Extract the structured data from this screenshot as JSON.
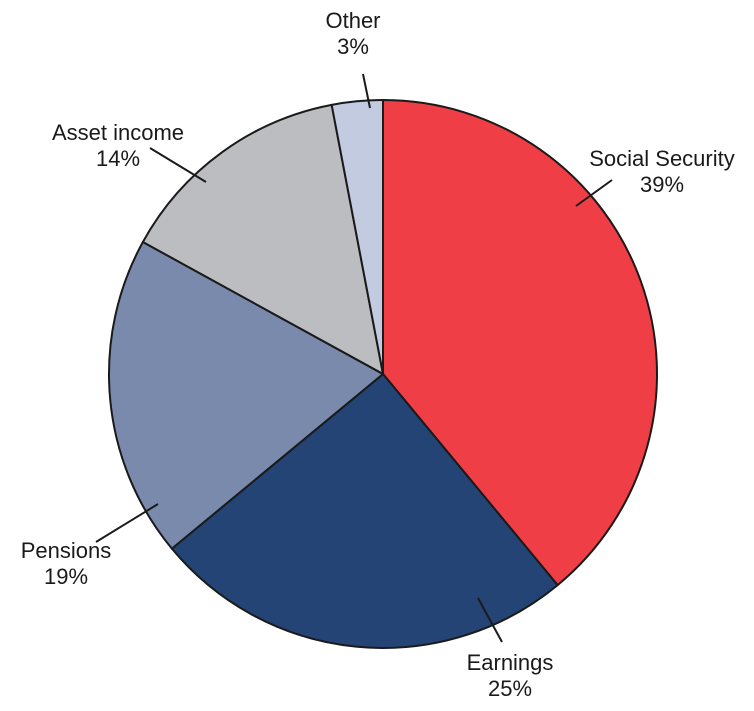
{
  "chart_data": {
    "type": "pie",
    "slices": [
      {
        "label": "Social Security",
        "value": 39,
        "value_label": "39%",
        "color": "#ef3e45"
      },
      {
        "label": "Earnings",
        "value": 25,
        "value_label": "25%",
        "color": "#234474"
      },
      {
        "label": "Pensions",
        "value": 19,
        "value_label": "19%",
        "color": "#7a8aad"
      },
      {
        "label": "Asset income",
        "value": 14,
        "value_label": "14%",
        "color": "#bcbdc0"
      },
      {
        "label": "Other",
        "value": 3,
        "value_label": "3%",
        "color": "#c3cbe0"
      }
    ],
    "start": "12 o'clock",
    "direction": "clockwise"
  }
}
